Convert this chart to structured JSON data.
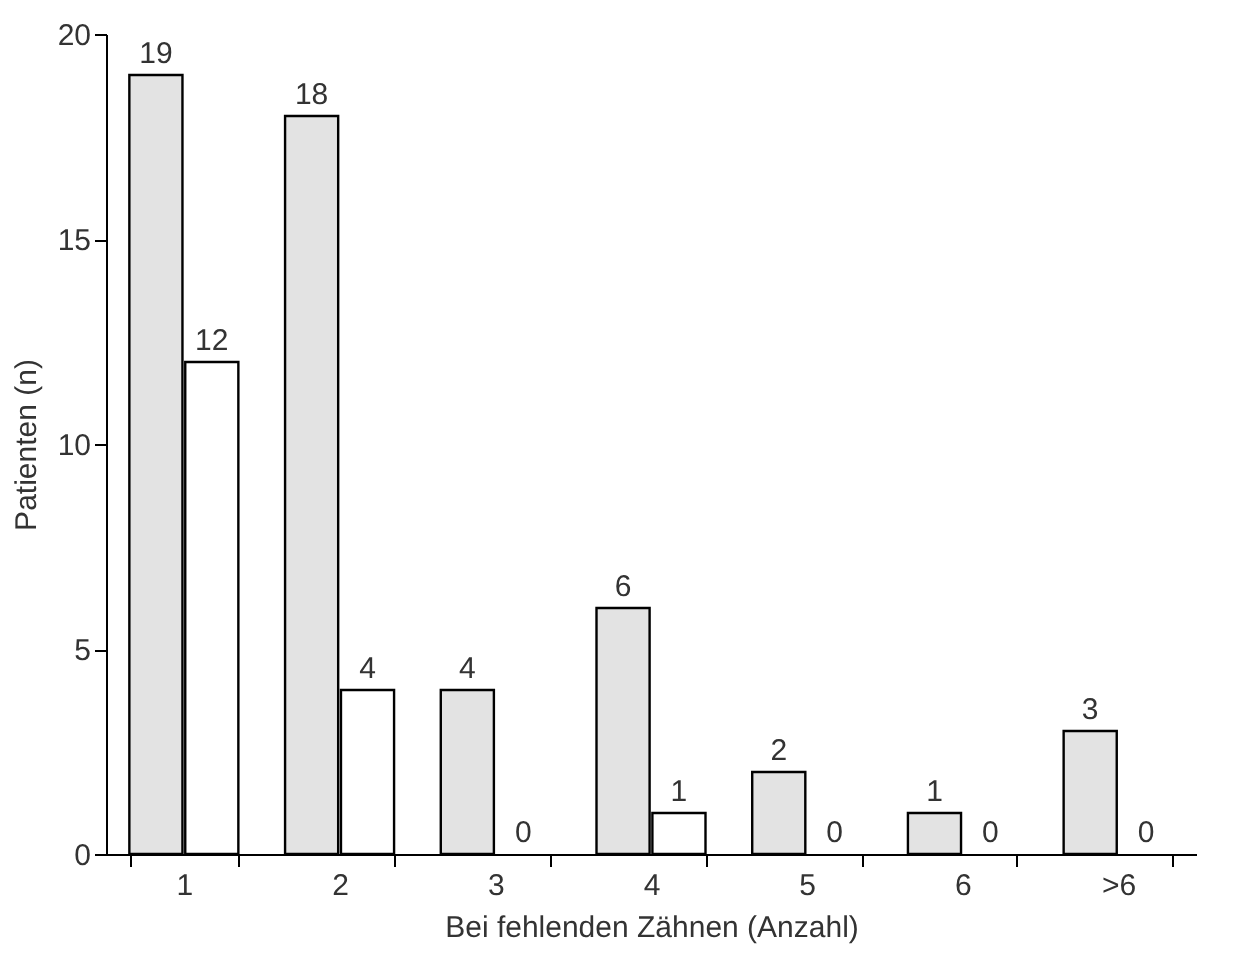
{
  "chart_data": {
    "type": "bar",
    "xlabel": "Bei fehlenden Zähnen (Anzahl)",
    "ylabel": "Patienten (n)",
    "categories": [
      "1",
      "2",
      "3",
      "4",
      "5",
      "6",
      ">6"
    ],
    "series": [
      {
        "color": "#e3e3e3",
        "values": [
          19,
          18,
          4,
          6,
          2,
          1,
          3
        ]
      },
      {
        "color": "#ffffff",
        "values": [
          12,
          4,
          0,
          1,
          0,
          0,
          0
        ]
      }
    ],
    "ylim": [
      0,
      20
    ],
    "yticks": [
      0,
      5,
      10,
      15,
      20
    ],
    "data_labels": true,
    "grid": false,
    "legend": false
  }
}
